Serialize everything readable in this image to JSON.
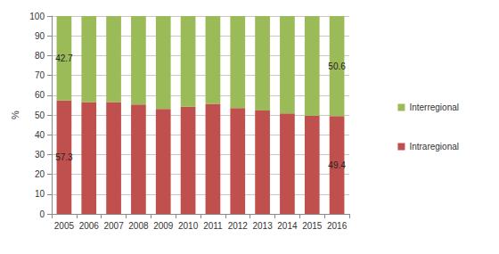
{
  "chart_data": {
    "type": "bar",
    "stacked": true,
    "categories": [
      "2005",
      "2006",
      "2007",
      "2008",
      "2009",
      "2010",
      "2011",
      "2012",
      "2013",
      "2014",
      "2015",
      "2016"
    ],
    "y_label": "%",
    "ylim": [
      0,
      100
    ],
    "yticks": [
      0,
      10,
      20,
      30,
      40,
      50,
      60,
      70,
      80,
      90,
      100
    ],
    "grid": true,
    "legend": "right",
    "series": [
      {
        "name": "Intraregional",
        "color": "#c0504d",
        "values": [
          57.3,
          56.5,
          56.5,
          55.3,
          53.0,
          54.2,
          55.6,
          53.5,
          52.2,
          50.8,
          49.5,
          49.4
        ],
        "value_labels": [
          "57.3",
          null,
          null,
          null,
          null,
          null,
          null,
          null,
          null,
          null,
          null,
          "49.4"
        ]
      },
      {
        "name": "Interregional",
        "color": "#9bbb59",
        "values": [
          42.7,
          43.5,
          43.5,
          44.7,
          47.0,
          45.8,
          44.4,
          46.5,
          47.8,
          49.2,
          50.5,
          50.6
        ],
        "value_labels": [
          "42.7",
          null,
          null,
          null,
          null,
          null,
          null,
          null,
          null,
          null,
          null,
          "50.6"
        ]
      }
    ]
  }
}
